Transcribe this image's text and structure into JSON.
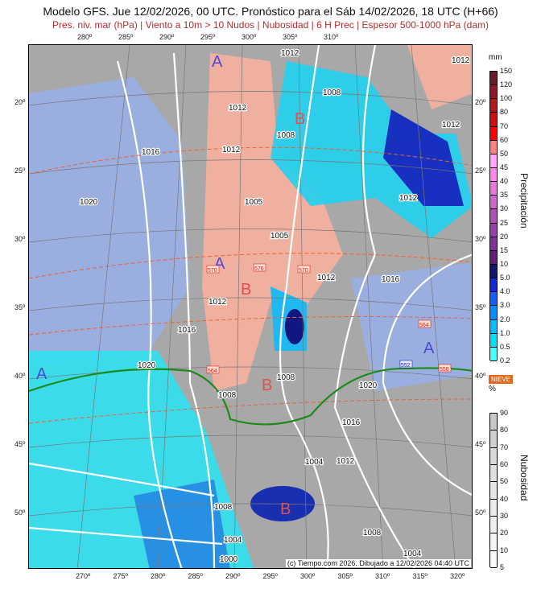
{
  "header": {
    "title": "Modelo GFS. Jue 12/02/2026, 00 UTC. Pronóstico para el Sáb 14/02/2026, 18 UTC (H+66)",
    "subtitle": "Pres. niv. mar (hPa) | Viento a 10m > 10 Nudos | Nubosidad | 6 H Prec | Espesor 500-1000 hPa (dam)"
  },
  "top_lon_ticks": [
    "280º",
    "285º",
    "290º",
    "295º",
    "300º",
    "305º",
    "310º"
  ],
  "bottom_lon_ticks": [
    "270º",
    "275º",
    "280º",
    "285º",
    "290º",
    "295º",
    "300º",
    "305º",
    "310º",
    "315º",
    "320º"
  ],
  "left_lat_ticks": [
    "20º",
    "25º",
    "30º",
    "35º",
    "40º",
    "45º",
    "50º"
  ],
  "right_lat_ticks": [
    "20º",
    "25º",
    "30º",
    "35º",
    "40º",
    "45º",
    "50º"
  ],
  "isobar_labels": [
    "1012",
    "1012",
    "1008",
    "1012",
    "1012",
    "1012",
    "1016",
    "1008",
    "1020",
    "1005",
    "1012",
    "1005",
    "1016",
    "1012",
    "1012",
    "1016",
    "1020",
    "1008",
    "1008",
    "1020",
    "1016",
    "1004",
    "1012",
    "1008",
    "1008",
    "1004",
    "1004",
    "1000"
  ],
  "pressure_centers": [
    {
      "type": "A",
      "color": "#4a4ad8"
    },
    {
      "type": "B",
      "color": "#e05050"
    },
    {
      "type": "A",
      "color": "#4a4ad8"
    },
    {
      "type": "B",
      "color": "#e05050"
    },
    {
      "type": "A",
      "color": "#4a4ad8"
    },
    {
      "type": "A",
      "color": "#4a4ad8"
    },
    {
      "type": "B",
      "color": "#e05050"
    },
    {
      "type": "B",
      "color": "#e05050"
    }
  ],
  "thickness_labels": [
    "570",
    "576",
    "570",
    "564",
    "564",
    "558",
    "552"
  ],
  "snow_line_color": "#1a8a1a",
  "credit": "(c) Tiempo.com 2026. Dibujado a 12/02/2026 04:40 UTC",
  "precip_legend": {
    "title": "Precipitación",
    "unit": "mm",
    "labels": [
      "150",
      "120",
      "100",
      "80",
      "70",
      "60",
      "50",
      "45",
      "40",
      "35",
      "30",
      "25",
      "20",
      "15",
      "10",
      "5.0",
      "4.0",
      "3.0",
      "2.0",
      "1.0",
      "0.5",
      "0.2"
    ],
    "colors": [
      "#6a1a2a",
      "#901828",
      "#b01820",
      "#d01010",
      "#ff0000",
      "#ff8080",
      "#ffa8f8",
      "#ff88ee",
      "#e878dc",
      "#d068cc",
      "#b050b8",
      "#9840a8",
      "#803098",
      "#60207a",
      "#101870",
      "#1828d0",
      "#1060ff",
      "#0090ff",
      "#00c0ff",
      "#00e0f8",
      "#40ffff"
    ]
  },
  "cloud_legend": {
    "title": "Nubosidad",
    "unit": "%",
    "labels": [
      "90",
      "80",
      "70",
      "60",
      "50",
      "40",
      "30",
      "20",
      "10",
      "5"
    ],
    "colors": [
      "#c8c8c8",
      "#d0d0d0",
      "#d8d8d8",
      "#e0e0e0",
      "#e6e6e6",
      "#ececec",
      "#f0f0f0",
      "#f4f4f4",
      "#fafafa"
    ]
  },
  "snow_label": "NIEVE"
}
